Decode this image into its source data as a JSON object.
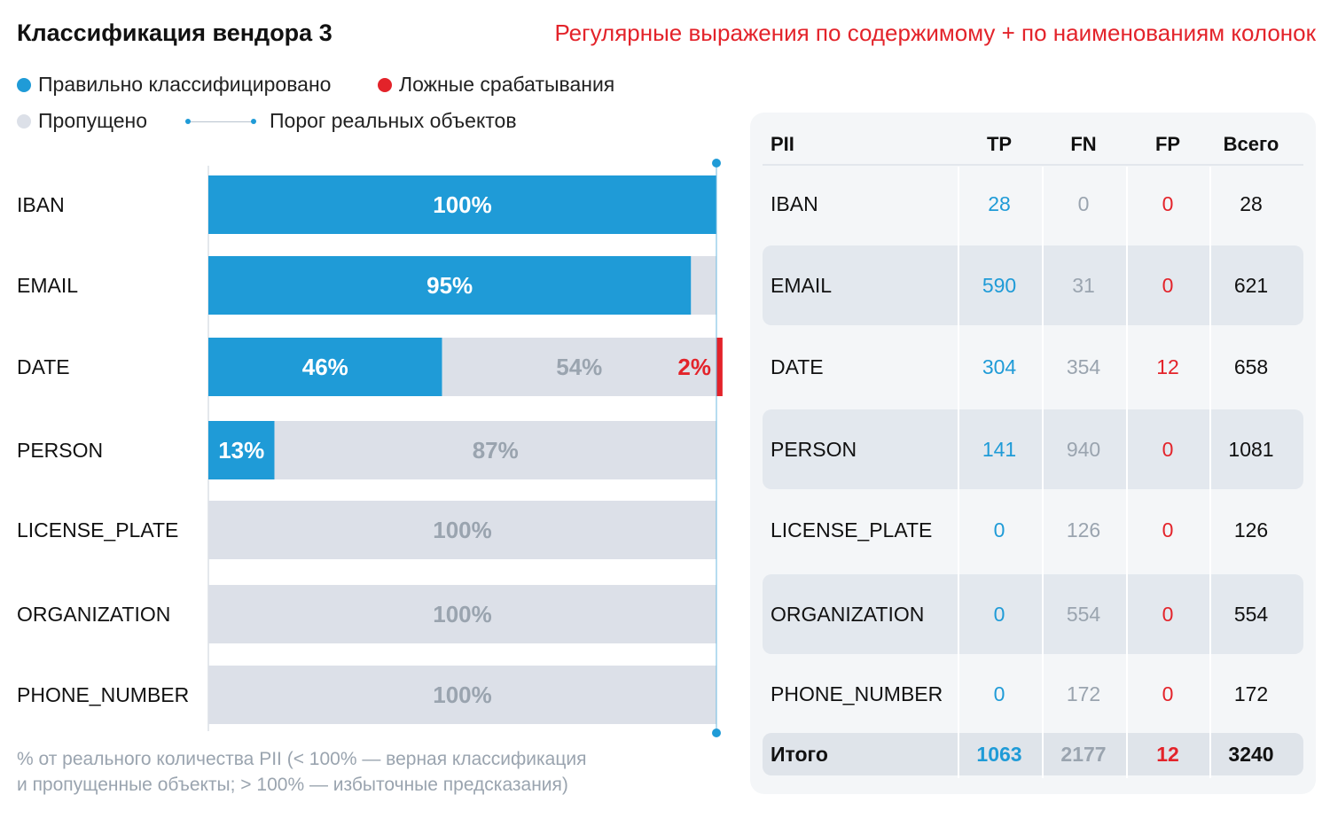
{
  "title": "Классификация вендора 3",
  "subtitle": "Регулярные выражения по содержимому + по наименованиям колонок",
  "legend": {
    "correct": {
      "label": "Правильно классифицировано",
      "color": "#1f9bd7"
    },
    "false_positive": {
      "label": "Ложные срабатывания",
      "color": "#e3232a"
    },
    "missed": {
      "label": "Пропущено",
      "color": "#dce0e8"
    },
    "threshold": {
      "label": "Порог реальных объектов",
      "color": "#1f9bd7"
    }
  },
  "chart_data": {
    "type": "bar",
    "orientation": "horizontal",
    "stacked": true,
    "categories": [
      "IBAN",
      "EMAIL",
      "DATE",
      "PERSON",
      "LICENSE_PLATE",
      "ORGANIZATION",
      "PHONE_NUMBER"
    ],
    "series": [
      {
        "name": "Правильно классифицировано",
        "values": [
          100,
          95,
          46,
          13,
          0,
          0,
          0
        ],
        "labels": [
          "100%",
          "95%",
          "46%",
          "13%",
          "",
          "",
          ""
        ],
        "color": "#1f9bd7"
      },
      {
        "name": "Пропущено",
        "values": [
          0,
          5,
          54,
          87,
          100,
          100,
          100
        ],
        "labels": [
          "",
          "",
          "54%",
          "87%",
          "100%",
          "100%",
          "100%"
        ],
        "color": "#dce0e8"
      },
      {
        "name": "Ложные срабатывания",
        "values": [
          0,
          0,
          2,
          0,
          0,
          0,
          0
        ],
        "labels": [
          "",
          "",
          "2%",
          "",
          "",
          "",
          ""
        ],
        "color": "#e3232a"
      }
    ],
    "threshold": 100,
    "xlim": [
      0,
      100
    ]
  },
  "footnote": {
    "line1": "% от реального количества PII (< 100% — верная классификация",
    "line2": "и пропущенные объекты; > 100% — избыточные предсказания)"
  },
  "table": {
    "headers": {
      "pii": "PII",
      "tp": "TP",
      "fn": "FN",
      "fp": "FP",
      "total": "Всего"
    },
    "rows": [
      {
        "pii": "IBAN",
        "tp": "28",
        "fn": "0",
        "fp": "0",
        "total": "28"
      },
      {
        "pii": "EMAIL",
        "tp": "590",
        "fn": "31",
        "fp": "0",
        "total": "621"
      },
      {
        "pii": "DATE",
        "tp": "304",
        "fn": "354",
        "fp": "12",
        "total": "658"
      },
      {
        "pii": "PERSON",
        "tp": "141",
        "fn": "940",
        "fp": "0",
        "total": "1081"
      },
      {
        "pii": "LICENSE_PLATE",
        "tp": "0",
        "fn": "126",
        "fp": "0",
        "total": "126"
      },
      {
        "pii": "ORGANIZATION",
        "tp": "0",
        "fn": "554",
        "fp": "0",
        "total": "554"
      },
      {
        "pii": "PHONE_NUMBER",
        "tp": "0",
        "fn": "172",
        "fp": "0",
        "total": "172"
      }
    ],
    "totals": {
      "pii": "Итого",
      "tp": "1063",
      "fn": "2177",
      "fp": "12",
      "total": "3240"
    }
  }
}
